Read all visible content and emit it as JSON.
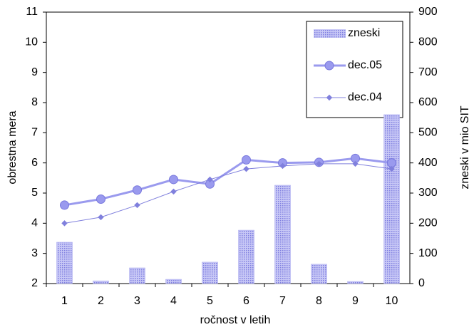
{
  "chart_data": {
    "type": "bar_line",
    "categories": [
      "1",
      "2",
      "3",
      "4",
      "5",
      "6",
      "7",
      "8",
      "9",
      "10"
    ],
    "xlabel": "ročnost v letih",
    "ylabel": "obrestna mera",
    "y2label": "zneski v mio SIT",
    "ylim": [
      2,
      11
    ],
    "yticks": [
      2,
      3,
      4,
      5,
      6,
      7,
      8,
      9,
      10,
      11
    ],
    "y2lim": [
      0,
      900
    ],
    "y2ticks": [
      0,
      100,
      200,
      300,
      400,
      500,
      600,
      700,
      800,
      900
    ],
    "grid": false,
    "legend": "upper right",
    "series": [
      {
        "name": "zneski",
        "type": "bar",
        "axis": "y2",
        "color": "#a3a3ee",
        "values": [
          137,
          9,
          52,
          14,
          71,
          177,
          326,
          64,
          7,
          560
        ]
      },
      {
        "name": "dec.05",
        "type": "line",
        "color": "#9a9aee",
        "values": [
          4.6,
          4.8,
          5.1,
          5.45,
          5.3,
          6.1,
          6.0,
          6.02,
          6.15,
          6.0
        ]
      },
      {
        "name": "dec.04",
        "type": "line",
        "color": "#8080dd",
        "values": [
          4.0,
          4.2,
          4.6,
          5.05,
          5.45,
          5.8,
          5.9,
          5.97,
          5.97,
          5.8
        ]
      }
    ]
  }
}
